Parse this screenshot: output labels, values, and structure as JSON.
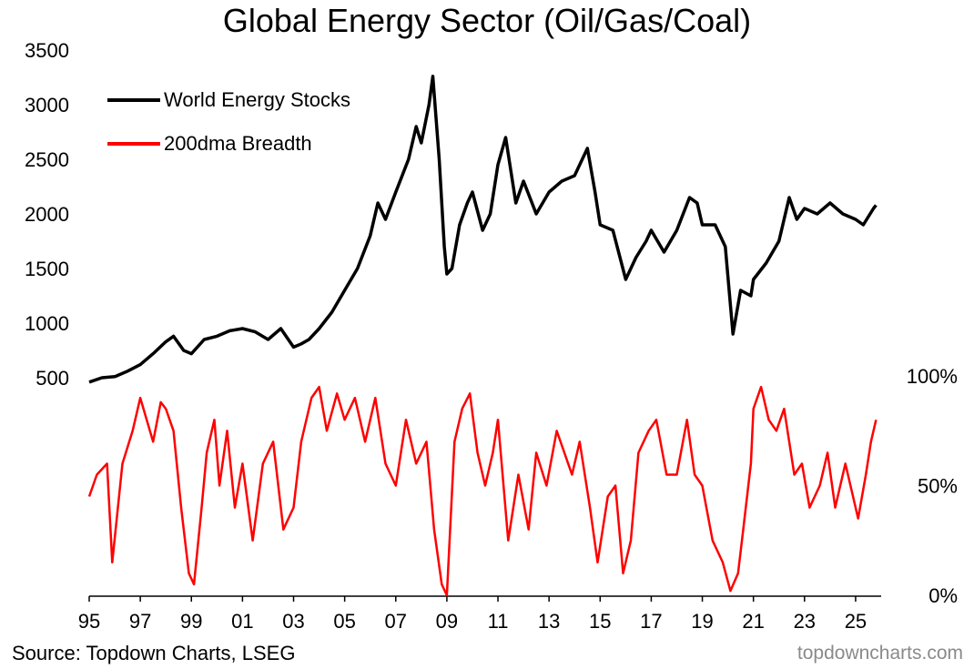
{
  "colors": {
    "stocks": "#000000",
    "breadth": "#ff0000",
    "brand": "#8a8a8a"
  },
  "footer": {
    "source": "Source: Topdown Charts, LSEG",
    "brand": "topdowncharts.com"
  },
  "chart_data": {
    "type": "line",
    "title": "Global Energy Sector (Oil/Gas/Coal)",
    "x_tick_labels": [
      "95",
      "97",
      "99",
      "01",
      "03",
      "05",
      "07",
      "09",
      "11",
      "13",
      "15",
      "17",
      "19",
      "21",
      "23",
      "25"
    ],
    "x_ticks": [
      1995,
      1997,
      1999,
      2001,
      2003,
      2005,
      2007,
      2009,
      2011,
      2013,
      2015,
      2017,
      2019,
      2021,
      2023,
      2025
    ],
    "xlim": [
      1995,
      2026
    ],
    "legend": {
      "position": "top-left",
      "entries": [
        "World Energy Stocks",
        "200dma Breadth"
      ]
    },
    "left_axis": {
      "ylim": [
        500,
        3500
      ],
      "ticks": [
        500,
        1000,
        1500,
        2000,
        2500,
        3000,
        3500
      ]
    },
    "right_axis": {
      "ylim": [
        0,
        100
      ],
      "tick_labels": [
        "0%",
        "50%",
        "100%"
      ]
    },
    "series": [
      {
        "name": "World Energy Stocks",
        "axis": "left",
        "points": [
          [
            1995.0,
            460
          ],
          [
            1995.5,
            500
          ],
          [
            1996.0,
            510
          ],
          [
            1996.5,
            560
          ],
          [
            1997.0,
            620
          ],
          [
            1997.5,
            720
          ],
          [
            1998.0,
            830
          ],
          [
            1998.3,
            880
          ],
          [
            1998.7,
            750
          ],
          [
            1999.0,
            720
          ],
          [
            1999.5,
            850
          ],
          [
            2000.0,
            880
          ],
          [
            2000.5,
            930
          ],
          [
            2001.0,
            950
          ],
          [
            2001.5,
            920
          ],
          [
            2002.0,
            850
          ],
          [
            2002.5,
            950
          ],
          [
            2003.0,
            780
          ],
          [
            2003.3,
            810
          ],
          [
            2003.6,
            850
          ],
          [
            2004.0,
            950
          ],
          [
            2004.5,
            1100
          ],
          [
            2005.0,
            1300
          ],
          [
            2005.5,
            1500
          ],
          [
            2006.0,
            1800
          ],
          [
            2006.3,
            2100
          ],
          [
            2006.6,
            1950
          ],
          [
            2007.0,
            2200
          ],
          [
            2007.5,
            2500
          ],
          [
            2007.8,
            2800
          ],
          [
            2008.0,
            2650
          ],
          [
            2008.3,
            3000
          ],
          [
            2008.45,
            3260
          ],
          [
            2008.7,
            2500
          ],
          [
            2008.9,
            1700
          ],
          [
            2009.0,
            1450
          ],
          [
            2009.2,
            1500
          ],
          [
            2009.5,
            1900
          ],
          [
            2009.8,
            2100
          ],
          [
            2010.0,
            2200
          ],
          [
            2010.4,
            1850
          ],
          [
            2010.7,
            2000
          ],
          [
            2011.0,
            2450
          ],
          [
            2011.3,
            2700
          ],
          [
            2011.7,
            2100
          ],
          [
            2012.0,
            2300
          ],
          [
            2012.5,
            2000
          ],
          [
            2013.0,
            2200
          ],
          [
            2013.5,
            2300
          ],
          [
            2014.0,
            2350
          ],
          [
            2014.5,
            2600
          ],
          [
            2014.8,
            2200
          ],
          [
            2015.0,
            1900
          ],
          [
            2015.5,
            1850
          ],
          [
            2016.0,
            1400
          ],
          [
            2016.4,
            1600
          ],
          [
            2016.8,
            1750
          ],
          [
            2017.0,
            1850
          ],
          [
            2017.5,
            1650
          ],
          [
            2018.0,
            1850
          ],
          [
            2018.5,
            2150
          ],
          [
            2018.8,
            2100
          ],
          [
            2019.0,
            1900
          ],
          [
            2019.5,
            1900
          ],
          [
            2019.9,
            1700
          ],
          [
            2020.2,
            900
          ],
          [
            2020.5,
            1300
          ],
          [
            2020.9,
            1250
          ],
          [
            2021.0,
            1400
          ],
          [
            2021.5,
            1550
          ],
          [
            2022.0,
            1750
          ],
          [
            2022.4,
            2150
          ],
          [
            2022.7,
            1950
          ],
          [
            2023.0,
            2050
          ],
          [
            2023.5,
            2000
          ],
          [
            2024.0,
            2100
          ],
          [
            2024.5,
            2000
          ],
          [
            2025.0,
            1950
          ],
          [
            2025.3,
            1900
          ],
          [
            2025.7,
            2050
          ],
          [
            2025.8,
            2080
          ]
        ]
      },
      {
        "name": "200dma Breadth",
        "axis": "right",
        "points": [
          [
            1995.0,
            45
          ],
          [
            1995.3,
            55
          ],
          [
            1995.7,
            60
          ],
          [
            1995.9,
            15
          ],
          [
            1996.3,
            60
          ],
          [
            1996.7,
            75
          ],
          [
            1997.0,
            90
          ],
          [
            1997.5,
            70
          ],
          [
            1997.8,
            88
          ],
          [
            1998.0,
            85
          ],
          [
            1998.3,
            75
          ],
          [
            1998.6,
            40
          ],
          [
            1998.9,
            10
          ],
          [
            1999.1,
            5
          ],
          [
            1999.4,
            40
          ],
          [
            1999.6,
            65
          ],
          [
            1999.9,
            80
          ],
          [
            2000.1,
            50
          ],
          [
            2000.4,
            75
          ],
          [
            2000.7,
            40
          ],
          [
            2001.0,
            60
          ],
          [
            2001.4,
            25
          ],
          [
            2001.8,
            60
          ],
          [
            2002.2,
            70
          ],
          [
            2002.6,
            30
          ],
          [
            2003.0,
            40
          ],
          [
            2003.3,
            70
          ],
          [
            2003.7,
            90
          ],
          [
            2004.0,
            95
          ],
          [
            2004.3,
            75
          ],
          [
            2004.7,
            92
          ],
          [
            2005.0,
            80
          ],
          [
            2005.4,
            90
          ],
          [
            2005.8,
            70
          ],
          [
            2006.2,
            90
          ],
          [
            2006.6,
            60
          ],
          [
            2007.0,
            50
          ],
          [
            2007.4,
            80
          ],
          [
            2007.8,
            60
          ],
          [
            2008.2,
            70
          ],
          [
            2008.5,
            30
          ],
          [
            2008.8,
            5
          ],
          [
            2009.0,
            0
          ],
          [
            2009.3,
            70
          ],
          [
            2009.6,
            85
          ],
          [
            2009.9,
            92
          ],
          [
            2010.2,
            65
          ],
          [
            2010.5,
            50
          ],
          [
            2010.8,
            65
          ],
          [
            2011.0,
            80
          ],
          [
            2011.4,
            25
          ],
          [
            2011.8,
            55
          ],
          [
            2012.2,
            30
          ],
          [
            2012.5,
            65
          ],
          [
            2012.9,
            50
          ],
          [
            2013.3,
            75
          ],
          [
            2013.6,
            65
          ],
          [
            2013.9,
            55
          ],
          [
            2014.2,
            70
          ],
          [
            2014.6,
            40
          ],
          [
            2014.9,
            15
          ],
          [
            2015.3,
            45
          ],
          [
            2015.6,
            50
          ],
          [
            2015.9,
            10
          ],
          [
            2016.2,
            25
          ],
          [
            2016.5,
            65
          ],
          [
            2016.9,
            75
          ],
          [
            2017.2,
            80
          ],
          [
            2017.6,
            55
          ],
          [
            2018.0,
            55
          ],
          [
            2018.4,
            80
          ],
          [
            2018.7,
            55
          ],
          [
            2019.0,
            50
          ],
          [
            2019.4,
            25
          ],
          [
            2019.8,
            15
          ],
          [
            2020.1,
            2
          ],
          [
            2020.4,
            10
          ],
          [
            2020.6,
            30
          ],
          [
            2020.9,
            60
          ],
          [
            2021.0,
            85
          ],
          [
            2021.3,
            95
          ],
          [
            2021.6,
            80
          ],
          [
            2021.9,
            75
          ],
          [
            2022.2,
            85
          ],
          [
            2022.6,
            55
          ],
          [
            2022.9,
            60
          ],
          [
            2023.2,
            40
          ],
          [
            2023.6,
            50
          ],
          [
            2023.9,
            65
          ],
          [
            2024.2,
            40
          ],
          [
            2024.6,
            60
          ],
          [
            2024.9,
            45
          ],
          [
            2025.1,
            35
          ],
          [
            2025.4,
            55
          ],
          [
            2025.6,
            70
          ],
          [
            2025.8,
            80
          ]
        ]
      }
    ]
  }
}
